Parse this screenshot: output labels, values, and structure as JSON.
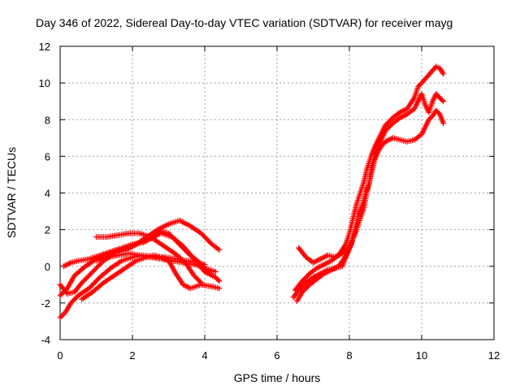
{
  "chart_data": {
    "type": "scatter",
    "title": "Day 346 of 2022, Sidereal Day-to-day VTEC variation (SDTVAR) for receiver mayg",
    "xlabel": "GPS time / hours",
    "ylabel": "SDTVAR / TECUs",
    "xlim": [
      0,
      12
    ],
    "ylim": [
      -4,
      12
    ],
    "xticks": [
      "0",
      "2",
      "4",
      "6",
      "8",
      "10",
      "12"
    ],
    "yticks": [
      "-4",
      "-2",
      "0",
      "2",
      "4",
      "6",
      "8",
      "10",
      "12"
    ],
    "grid": true,
    "marker": "+",
    "color": "#ff0000",
    "series": [
      {
        "name": "track-1",
        "points": [
          [
            0.0,
            -1.0
          ],
          [
            0.2,
            -1.5
          ],
          [
            0.4,
            -1.4
          ],
          [
            0.6,
            -0.9
          ],
          [
            0.9,
            -0.3
          ],
          [
            1.2,
            0.3
          ],
          [
            1.5,
            0.7
          ],
          [
            1.8,
            0.9
          ],
          [
            2.1,
            1.2
          ],
          [
            2.4,
            1.6
          ],
          [
            2.7,
            2.0
          ],
          [
            3.0,
            2.3
          ],
          [
            3.3,
            2.5
          ],
          [
            3.6,
            2.2
          ],
          [
            3.9,
            1.8
          ],
          [
            4.2,
            1.2
          ],
          [
            4.4,
            0.9
          ]
        ]
      },
      {
        "name": "track-2",
        "points": [
          [
            0.0,
            -1.6
          ],
          [
            0.2,
            -1.2
          ],
          [
            0.4,
            -0.5
          ],
          [
            0.7,
            0.0
          ],
          [
            1.0,
            0.4
          ],
          [
            1.3,
            0.7
          ],
          [
            1.6,
            0.9
          ],
          [
            1.9,
            1.0
          ],
          [
            2.2,
            1.3
          ],
          [
            2.5,
            1.6
          ],
          [
            2.8,
            1.8
          ],
          [
            3.1,
            1.6
          ],
          [
            3.4,
            1.1
          ],
          [
            3.7,
            0.4
          ],
          [
            4.0,
            -0.3
          ],
          [
            4.3,
            -0.6
          ],
          [
            4.4,
            -0.8
          ]
        ]
      },
      {
        "name": "track-3",
        "points": [
          [
            0.0,
            -2.8
          ],
          [
            0.15,
            -2.5
          ],
          [
            0.3,
            -2.0
          ],
          [
            0.5,
            -1.6
          ],
          [
            0.8,
            -1.2
          ],
          [
            1.1,
            -0.6
          ],
          [
            1.4,
            -0.1
          ],
          [
            1.7,
            0.3
          ],
          [
            2.0,
            0.5
          ],
          [
            2.3,
            0.6
          ],
          [
            2.6,
            0.5
          ],
          [
            2.9,
            0.5
          ],
          [
            3.2,
            0.4
          ],
          [
            3.5,
            0.3
          ],
          [
            3.8,
            0.2
          ],
          [
            4.0,
            0.1
          ]
        ]
      },
      {
        "name": "track-4",
        "points": [
          [
            0.6,
            -1.8
          ],
          [
            0.9,
            -1.4
          ],
          [
            1.2,
            -0.9
          ],
          [
            1.5,
            -0.5
          ],
          [
            1.8,
            -0.1
          ],
          [
            2.1,
            0.3
          ],
          [
            2.4,
            0.5
          ],
          [
            2.6,
            0.6
          ],
          [
            2.8,
            0.5
          ],
          [
            3.0,
            0.3
          ],
          [
            3.2,
            -0.4
          ],
          [
            3.4,
            -1.0
          ],
          [
            3.6,
            -1.2
          ],
          [
            3.9,
            -1.0
          ],
          [
            4.2,
            -1.1
          ],
          [
            4.4,
            -1.2
          ]
        ]
      },
      {
        "name": "track-5",
        "points": [
          [
            0.1,
            0.0
          ],
          [
            0.3,
            0.2
          ],
          [
            0.5,
            0.3
          ],
          [
            0.8,
            0.4
          ],
          [
            1.1,
            0.6
          ],
          [
            1.4,
            0.8
          ],
          [
            1.7,
            1.0
          ],
          [
            2.0,
            1.2
          ],
          [
            2.3,
            1.3
          ],
          [
            2.6,
            1.6
          ],
          [
            2.8,
            1.9
          ],
          [
            3.0,
            1.8
          ],
          [
            3.2,
            1.4
          ],
          [
            3.4,
            1.0
          ],
          [
            3.6,
            0.6
          ],
          [
            3.8,
            0.3
          ],
          [
            4.0,
            -0.1
          ],
          [
            4.3,
            -0.3
          ]
        ]
      },
      {
        "name": "track-6",
        "points": [
          [
            1.0,
            1.6
          ],
          [
            1.3,
            1.6
          ],
          [
            1.6,
            1.7
          ],
          [
            1.9,
            1.8
          ],
          [
            2.2,
            1.8
          ],
          [
            2.5,
            1.6
          ],
          [
            2.8,
            1.2
          ],
          [
            3.1,
            0.8
          ],
          [
            3.3,
            0.5
          ],
          [
            3.5,
            0.1
          ],
          [
            3.7,
            -0.5
          ],
          [
            3.9,
            -0.9
          ]
        ]
      },
      {
        "name": "track-7",
        "points": [
          [
            1.0,
            0.3
          ],
          [
            1.3,
            0.5
          ],
          [
            1.6,
            0.6
          ],
          [
            1.9,
            0.7
          ],
          [
            2.2,
            0.6
          ],
          [
            2.5,
            0.5
          ],
          [
            2.8,
            0.4
          ],
          [
            3.1,
            0.3
          ],
          [
            3.4,
            0.2
          ],
          [
            3.7,
            0.1
          ],
          [
            3.9,
            0.0
          ],
          [
            4.1,
            -0.3
          ]
        ]
      },
      {
        "name": "track-8",
        "points": [
          [
            6.45,
            -1.7
          ],
          [
            6.6,
            -1.3
          ],
          [
            6.8,
            -0.9
          ],
          [
            7.0,
            -0.6
          ],
          [
            7.2,
            -0.4
          ],
          [
            7.4,
            -0.2
          ],
          [
            7.6,
            -0.1
          ],
          [
            7.8,
            0.0
          ],
          [
            7.9,
            0.5
          ],
          [
            8.0,
            1.0
          ],
          [
            8.1,
            1.5
          ],
          [
            8.2,
            2.0
          ],
          [
            8.3,
            2.6
          ],
          [
            8.4,
            3.2
          ],
          [
            8.5,
            4.2
          ],
          [
            8.6,
            5.0
          ],
          [
            8.7,
            5.8
          ],
          [
            8.8,
            6.3
          ],
          [
            8.9,
            6.6
          ],
          [
            9.0,
            6.8
          ],
          [
            9.2,
            7.0
          ],
          [
            9.4,
            6.9
          ],
          [
            9.6,
            6.8
          ],
          [
            9.8,
            6.9
          ],
          [
            10.0,
            7.2
          ],
          [
            10.1,
            7.6
          ],
          [
            10.2,
            8.0
          ],
          [
            10.3,
            8.2
          ],
          [
            10.4,
            8.5
          ],
          [
            10.5,
            8.3
          ],
          [
            10.6,
            7.8
          ]
        ]
      },
      {
        "name": "track-9",
        "points": [
          [
            6.55,
            -1.9
          ],
          [
            6.7,
            -1.4
          ],
          [
            6.9,
            -1.0
          ],
          [
            7.1,
            -0.7
          ],
          [
            7.3,
            -0.4
          ],
          [
            7.5,
            -0.2
          ],
          [
            7.7,
            0.0
          ],
          [
            7.85,
            0.4
          ],
          [
            7.95,
            0.8
          ],
          [
            8.05,
            1.2
          ],
          [
            8.15,
            2.0
          ],
          [
            8.25,
            2.8
          ],
          [
            8.35,
            3.3
          ],
          [
            8.45,
            4.0
          ],
          [
            8.55,
            4.5
          ],
          [
            8.6,
            5.4
          ],
          [
            8.7,
            6.0
          ],
          [
            8.8,
            6.6
          ],
          [
            8.9,
            7.0
          ],
          [
            9.0,
            7.4
          ],
          [
            9.2,
            7.8
          ],
          [
            9.4,
            8.1
          ],
          [
            9.6,
            8.3
          ],
          [
            9.8,
            8.6
          ],
          [
            9.9,
            9.0
          ],
          [
            10.0,
            9.4
          ],
          [
            10.1,
            8.8
          ],
          [
            10.2,
            8.4
          ],
          [
            10.3,
            9.0
          ],
          [
            10.4,
            9.4
          ],
          [
            10.5,
            9.2
          ],
          [
            10.6,
            9.0
          ]
        ]
      },
      {
        "name": "track-10",
        "points": [
          [
            6.5,
            -1.3
          ],
          [
            6.7,
            -0.8
          ],
          [
            6.9,
            -0.4
          ],
          [
            7.1,
            -0.1
          ],
          [
            7.3,
            0.1
          ],
          [
            7.5,
            0.3
          ],
          [
            7.7,
            0.6
          ],
          [
            7.9,
            1.2
          ],
          [
            8.0,
            1.8
          ],
          [
            8.1,
            2.6
          ],
          [
            8.2,
            3.4
          ],
          [
            8.3,
            4.0
          ],
          [
            8.4,
            4.6
          ],
          [
            8.5,
            5.4
          ],
          [
            8.6,
            6.0
          ],
          [
            8.7,
            6.5
          ],
          [
            8.8,
            6.9
          ],
          [
            8.9,
            7.3
          ],
          [
            9.0,
            7.7
          ],
          [
            9.2,
            8.1
          ],
          [
            9.4,
            8.4
          ],
          [
            9.6,
            8.6
          ],
          [
            9.8,
            9.2
          ],
          [
            9.9,
            9.8
          ],
          [
            10.0,
            10.0
          ],
          [
            10.4,
            10.9
          ],
          [
            10.5,
            10.8
          ],
          [
            10.6,
            10.5
          ]
        ]
      },
      {
        "name": "track-11",
        "points": [
          [
            6.6,
            1.0
          ],
          [
            6.8,
            0.5
          ],
          [
            7.0,
            0.2
          ],
          [
            7.2,
            0.4
          ],
          [
            7.4,
            0.6
          ],
          [
            7.6,
            0.5
          ],
          [
            7.8,
            0.7
          ],
          [
            7.9,
            1.1
          ]
        ]
      }
    ]
  }
}
